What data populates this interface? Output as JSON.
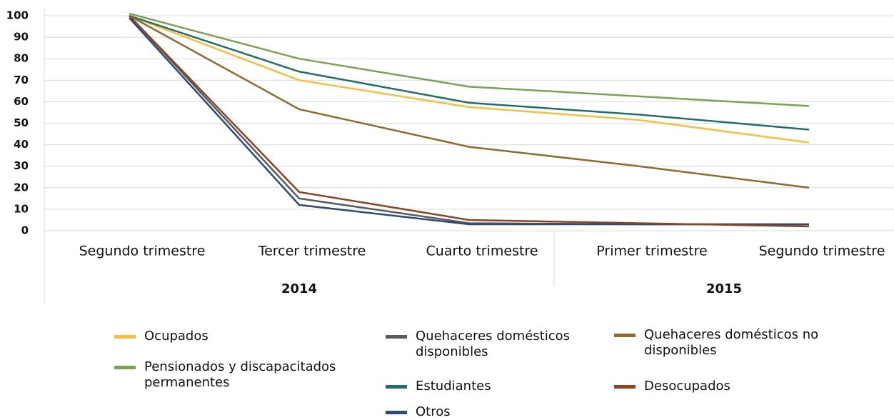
{
  "chart_data": {
    "type": "line",
    "categories": [
      "Segundo trimestre",
      "Tercer trimestre",
      "Cuarto trimestre",
      "Primer trimestre",
      "Segundo trimestre"
    ],
    "groups": [
      "2014",
      "2015"
    ],
    "ylim": [
      0,
      100
    ],
    "yticks": [
      0,
      10,
      20,
      30,
      40,
      50,
      60,
      70,
      80,
      90,
      100
    ],
    "grid": true,
    "series": [
      {
        "name": "Ocupados",
        "color": "#f9be3a",
        "values": [
          100,
          70,
          57.5,
          51.5,
          41
        ]
      },
      {
        "name": "Pensionados y discapacitados permanentes",
        "color": "#7aa350",
        "values": [
          101,
          80,
          67,
          62.5,
          58
        ]
      },
      {
        "name": "Quehaceres domésticos disponibles",
        "color": "#5a5a5a",
        "values": [
          100,
          15,
          3.5,
          3,
          3
        ]
      },
      {
        "name": "Estudiantes",
        "color": "#1f6f6a",
        "values": [
          100,
          74,
          59.5,
          54,
          47
        ]
      },
      {
        "name": "Otros",
        "color": "#2c4b7a",
        "values": [
          99,
          12,
          3,
          3,
          3
        ]
      },
      {
        "name": "Quehaceres domésticos no disponibles",
        "color": "#8c6d2a",
        "values": [
          100,
          56.5,
          39,
          30,
          20
        ]
      },
      {
        "name": "Desocupados",
        "color": "#8e4420",
        "values": [
          100,
          18,
          5,
          3.5,
          2
        ]
      }
    ]
  }
}
